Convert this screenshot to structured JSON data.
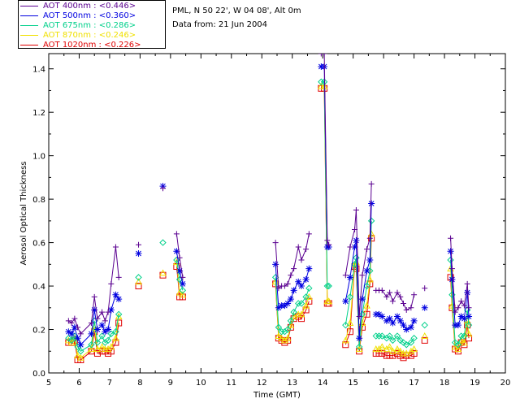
{
  "header": {
    "site": "PML, N 50 22', W 04 08', Alt 0m",
    "date": "Data from: 21 Jun 2004"
  },
  "legend": [
    {
      "label": "AOT  400nm : <0.446>",
      "color": "#5a0090"
    },
    {
      "label": "AOT  500nm : <0.360>",
      "color": "#0000e0"
    },
    {
      "label": "AOT  675nm : <0.286>",
      "color": "#00d08a"
    },
    {
      "label": "AOT  870nm : <0.246>",
      "color": "#f0e000"
    },
    {
      "label": "AOT 1020nm : <0.226>",
      "color": "#e00000"
    }
  ],
  "chart_data": {
    "type": "line",
    "xlabel": "Time (GMT)",
    "ylabel": "Aerosol Optical Thickness",
    "xlim": [
      5,
      20
    ],
    "ylim": [
      0,
      1.47
    ],
    "xticks": [
      "5",
      "6",
      "7",
      "8",
      "9",
      "10",
      "11",
      "12",
      "13",
      "14",
      "15",
      "16",
      "17",
      "18",
      "19",
      "20"
    ],
    "yticks": [
      "0.0",
      "0.2",
      "0.4",
      "0.6",
      "0.8",
      "1.0",
      "1.2",
      "1.4"
    ],
    "x": [
      5.65,
      5.75,
      5.85,
      5.95,
      6.05,
      6.4,
      6.5,
      6.6,
      6.75,
      6.85,
      6.95,
      7.05,
      7.2,
      7.3,
      7.4,
      7.95,
      8.75,
      9.2,
      9.3,
      9.4,
      12.45,
      12.55,
      12.65,
      12.75,
      12.85,
      12.95,
      13.05,
      13.2,
      13.3,
      13.45,
      13.55,
      13.95,
      14.05,
      14.15,
      14.2,
      14.75,
      14.9,
      15.05,
      15.1,
      15.2,
      15.3,
      15.45,
      15.55,
      15.6,
      15.75,
      15.85,
      15.95,
      16.1,
      16.2,
      16.3,
      16.45,
      16.55,
      16.65,
      16.75,
      16.9,
      17.0,
      17.35,
      18.2,
      18.25,
      18.35,
      18.45,
      18.55,
      18.65,
      18.75,
      18.8
    ],
    "series": [
      {
        "name": "AOT  400nm",
        "color": "#5a0090",
        "marker": "+",
        "values": [
          0.24,
          0.23,
          0.25,
          0.21,
          0.18,
          0.23,
          0.35,
          0.25,
          0.28,
          0.24,
          0.28,
          0.41,
          0.58,
          0.44,
          null,
          0.59,
          0.85,
          0.64,
          0.53,
          0.44,
          0.6,
          0.39,
          0.4,
          0.4,
          0.41,
          0.45,
          0.48,
          0.58,
          0.52,
          0.57,
          0.64,
          1.47,
          1.47,
          0.61,
          0.59,
          0.45,
          0.58,
          0.66,
          0.75,
          0.26,
          0.45,
          0.57,
          0.62,
          0.87,
          0.38,
          0.38,
          0.38,
          0.35,
          0.37,
          0.33,
          0.37,
          0.35,
          0.32,
          0.29,
          0.3,
          0.36,
          0.39,
          0.62,
          0.48,
          0.28,
          0.3,
          0.33,
          0.31,
          0.41,
          0.3
        ]
      },
      {
        "name": "AOT  500nm",
        "color": "#0000e0",
        "marker": "*",
        "values": [
          0.19,
          0.18,
          0.21,
          0.16,
          0.13,
          0.18,
          0.29,
          0.2,
          0.22,
          0.19,
          0.2,
          0.29,
          0.36,
          0.34,
          null,
          0.55,
          0.86,
          0.56,
          0.47,
          0.41,
          0.5,
          0.3,
          0.31,
          0.31,
          0.32,
          0.34,
          0.38,
          0.42,
          0.4,
          0.43,
          0.48,
          1.41,
          1.41,
          0.58,
          0.58,
          0.33,
          0.44,
          0.58,
          0.61,
          0.16,
          0.34,
          0.47,
          0.52,
          0.78,
          0.27,
          0.27,
          0.26,
          0.24,
          0.25,
          0.23,
          0.26,
          0.24,
          0.22,
          0.2,
          0.21,
          0.24,
          0.3,
          0.56,
          0.43,
          0.22,
          0.22,
          0.26,
          0.25,
          0.37,
          0.26
        ]
      },
      {
        "name": "AOT  675nm",
        "color": "#00d08a",
        "marker": "diamond",
        "values": [
          0.16,
          0.15,
          0.17,
          0.12,
          0.1,
          0.13,
          0.24,
          0.14,
          0.17,
          0.14,
          0.15,
          0.18,
          0.19,
          0.27,
          null,
          0.44,
          0.6,
          0.52,
          0.43,
          0.38,
          0.44,
          0.21,
          0.19,
          0.19,
          0.2,
          0.24,
          0.28,
          0.32,
          0.32,
          0.35,
          0.39,
          1.34,
          1.34,
          0.4,
          0.4,
          0.22,
          0.35,
          0.5,
          0.53,
          0.12,
          0.27,
          0.4,
          0.47,
          0.7,
          0.17,
          0.17,
          0.17,
          0.16,
          0.17,
          0.15,
          0.17,
          0.15,
          0.14,
          0.13,
          0.14,
          0.16,
          0.22,
          0.52,
          0.36,
          0.14,
          0.13,
          0.17,
          0.17,
          0.29,
          0.22
        ]
      },
      {
        "name": "AOT  870nm",
        "color": "#f0e000",
        "marker": "triangle",
        "values": [
          0.15,
          0.14,
          0.16,
          0.08,
          0.07,
          0.11,
          0.21,
          0.11,
          0.12,
          0.11,
          0.11,
          0.12,
          0.16,
          0.26,
          null,
          0.42,
          0.46,
          0.51,
          0.37,
          0.36,
          0.42,
          0.17,
          0.16,
          0.15,
          0.16,
          0.22,
          0.26,
          0.27,
          0.27,
          0.31,
          0.35,
          1.32,
          1.32,
          0.33,
          0.33,
          0.15,
          0.23,
          0.5,
          0.51,
          0.11,
          0.23,
          0.31,
          0.43,
          0.64,
          0.11,
          0.11,
          0.12,
          0.11,
          0.12,
          0.1,
          0.11,
          0.1,
          0.09,
          0.09,
          0.1,
          0.11,
          0.17,
          0.48,
          0.31,
          0.12,
          0.11,
          0.15,
          0.14,
          0.24,
          0.18
        ]
      },
      {
        "name": "AOT 1020nm",
        "color": "#e00000",
        "marker": "square",
        "values": [
          0.14,
          0.14,
          0.15,
          0.06,
          0.06,
          0.1,
          0.19,
          0.09,
          0.1,
          0.1,
          0.09,
          0.1,
          0.14,
          0.23,
          null,
          0.4,
          0.45,
          0.49,
          0.35,
          0.35,
          0.41,
          0.16,
          0.15,
          0.14,
          0.15,
          0.21,
          0.25,
          0.26,
          0.25,
          0.29,
          0.33,
          1.31,
          1.31,
          0.32,
          0.32,
          0.13,
          0.19,
          0.49,
          0.48,
          0.1,
          0.21,
          0.27,
          0.41,
          0.62,
          0.09,
          0.09,
          0.09,
          0.08,
          0.08,
          0.08,
          0.09,
          0.08,
          0.07,
          0.08,
          0.08,
          0.09,
          0.15,
          0.44,
          0.3,
          0.11,
          0.1,
          0.14,
          0.13,
          0.22,
          0.16
        ]
      }
    ],
    "segments": [
      [
        0,
        14
      ],
      [
        15,
        15
      ],
      [
        16,
        16
      ],
      [
        17,
        19
      ],
      [
        20,
        30
      ],
      [
        31,
        34
      ],
      [
        35,
        43
      ],
      [
        44,
        55
      ],
      [
        56,
        56
      ],
      [
        57,
        64
      ]
    ],
    "grid": false,
    "legend_position": "top-left"
  }
}
